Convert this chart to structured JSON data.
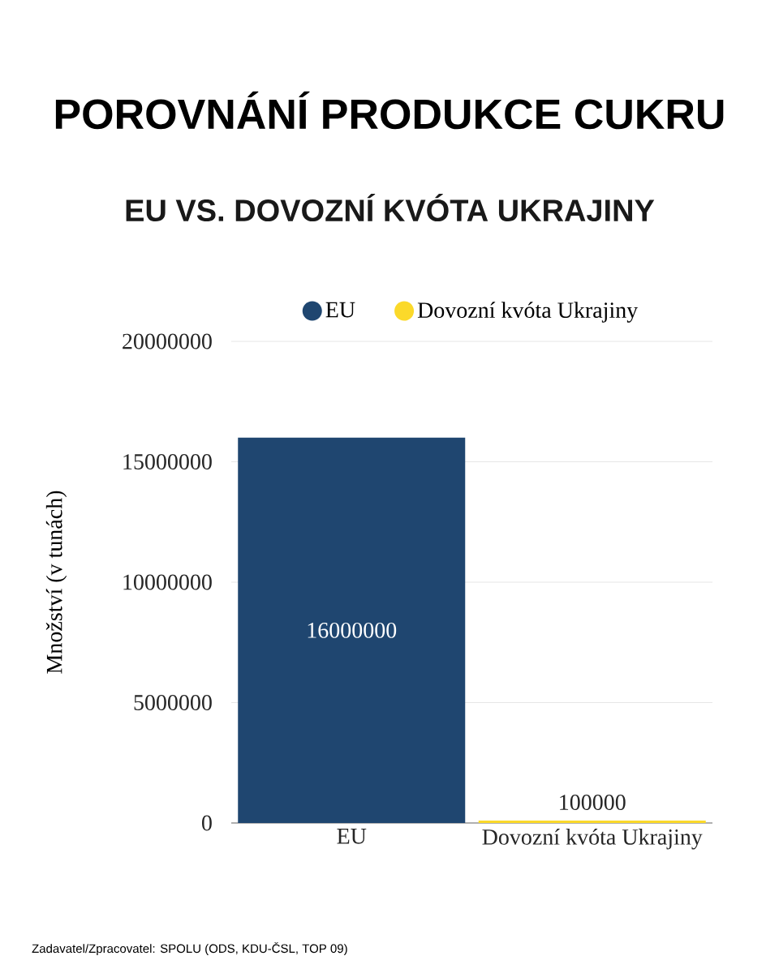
{
  "chart_data": {
    "type": "bar",
    "title": "POROVNÁNÍ PRODUKCE CUKRU",
    "subtitle": "EU VS. DOVOZNÍ KVÓTA UKRAJINY",
    "ylabel": "Množství (v tunách)",
    "categories": [
      "EU",
      "Dovozní kvóta Ukrajiny"
    ],
    "series": [
      {
        "name": "EU",
        "color": "#1f4670",
        "values": [
          16000000,
          null
        ]
      },
      {
        "name": "Dovozní kvóta Ukrajiny",
        "color": "#fbd92a",
        "values": [
          null,
          100000
        ]
      }
    ],
    "ylim": [
      0,
      20000000
    ],
    "yticks": [
      0,
      5000000,
      10000000,
      15000000,
      20000000
    ],
    "grid": "y",
    "legend": "top",
    "data_labels": true,
    "annotations": [
      "Zadavatel/Zpracovatel: SPOLU (ODS, KDU-ČSL, TOP 09)"
    ]
  }
}
